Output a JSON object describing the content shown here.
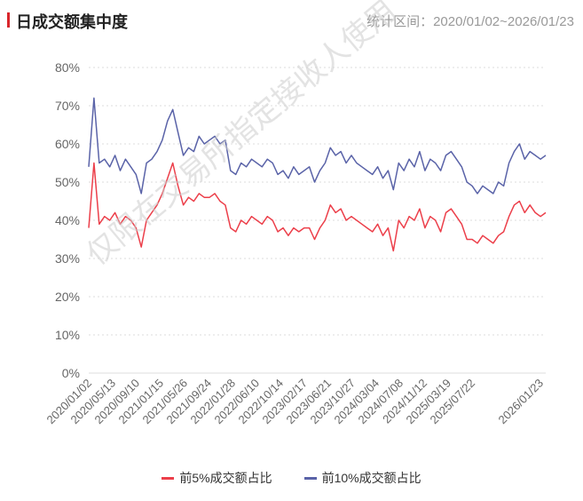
{
  "header": {
    "title": "日成交额集中度",
    "range_label": "统计区间：2020/01/02~2026/01/23"
  },
  "watermark": "仅限在交易所指定接收人使用",
  "chart_data": {
    "type": "line",
    "title": "日成交额集中度",
    "xlabel": "",
    "ylabel": "",
    "ylim": [
      0,
      80
    ],
    "yticks": [
      "0%",
      "10%",
      "20%",
      "30%",
      "40%",
      "50%",
      "60%",
      "70%",
      "80%"
    ],
    "xticks": [
      "2020/01/02",
      "2020/05/13",
      "2020/09/10",
      "2021/01/15",
      "2021/05/26",
      "2021/09/24",
      "2022/01/28",
      "2022/06/10",
      "2022/10/14",
      "2023/02/17",
      "2023/06/21",
      "2023/10/27",
      "2024/03/04",
      "2024/07/08",
      "2024/11/12",
      "2025/03/19",
      "2025/07/22",
      "2026/01/23"
    ],
    "grid": true,
    "legend_position": "bottom",
    "series": [
      {
        "name": "前5%成交额占比",
        "color": "#ec3f4a",
        "values": [
          38,
          55,
          39,
          41,
          40,
          42,
          39,
          41,
          40,
          38,
          33,
          40,
          42,
          44,
          47,
          51,
          55,
          49,
          44,
          46,
          45,
          47,
          46,
          46,
          47,
          45,
          44,
          38,
          37,
          40,
          39,
          41,
          40,
          39,
          41,
          40,
          37,
          38,
          36,
          38,
          37,
          38,
          38,
          35,
          38,
          40,
          44,
          42,
          43,
          40,
          41,
          40,
          39,
          38,
          37,
          39,
          36,
          38,
          32,
          40,
          38,
          41,
          40,
          43,
          38,
          41,
          40,
          37,
          42,
          43,
          41,
          39,
          35,
          35,
          34,
          36,
          35,
          34,
          36,
          37,
          41,
          44,
          45,
          42,
          44,
          42,
          41,
          42
        ]
      },
      {
        "name": "前10%成交额占比",
        "color": "#5a63a8",
        "values": [
          54,
          72,
          55,
          56,
          54,
          57,
          53,
          56,
          54,
          52,
          47,
          55,
          56,
          58,
          61,
          66,
          69,
          63,
          57,
          59,
          58,
          62,
          60,
          61,
          62,
          60,
          61,
          53,
          52,
          55,
          54,
          56,
          55,
          54,
          56,
          55,
          52,
          53,
          51,
          54,
          52,
          53,
          54,
          50,
          53,
          55,
          59,
          57,
          58,
          55,
          57,
          55,
          54,
          53,
          52,
          54,
          51,
          53,
          48,
          55,
          53,
          56,
          54,
          58,
          53,
          56,
          55,
          53,
          57,
          58,
          56,
          54,
          50,
          49,
          47,
          49,
          48,
          47,
          50,
          49,
          55,
          58,
          60,
          56,
          58,
          57,
          56,
          57
        ]
      }
    ]
  }
}
